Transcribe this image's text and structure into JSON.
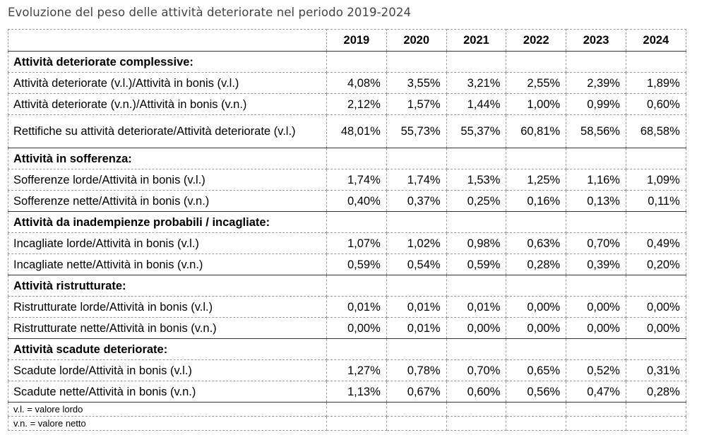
{
  "title": "Evoluzione del peso delle attività deteriorate nel periodo 2019-2024",
  "years": [
    "2019",
    "2020",
    "2021",
    "2022",
    "2023",
    "2024"
  ],
  "sections": [
    {
      "heading": "Attività deteriorate complessive:",
      "rows": [
        {
          "label": "Attività deteriorate (v.l.)/Attività in bonis (v.l.)",
          "values": [
            "4,08%",
            "3,55%",
            "3,21%",
            "2,55%",
            "2,39%",
            "1,89%"
          ]
        },
        {
          "label": "Attività deteriorate (v.n.)/Attività in bonis (v.n.)",
          "values": [
            "2,12%",
            "1,57%",
            "1,44%",
            "1,00%",
            "0,99%",
            "0,60%"
          ]
        },
        {
          "label": "Rettifiche su attività deteriorate/Attività deteriorate (v.l.)",
          "values": [
            "48,01%",
            "55,73%",
            "55,37%",
            "60,81%",
            "58,56%",
            "68,58%"
          ]
        }
      ]
    },
    {
      "heading": "Attività in sofferenza:",
      "rows": [
        {
          "label": "Sofferenze lorde/Attività in bonis (v.l.)",
          "values": [
            "1,74%",
            "1,74%",
            "1,53%",
            "1,25%",
            "1,16%",
            "1,09%"
          ]
        },
        {
          "label": "Sofferenze nette/Attività in bonis (v.n.)",
          "values": [
            "0,40%",
            "0,37%",
            "0,25%",
            "0,16%",
            "0,13%",
            "0,11%"
          ]
        }
      ]
    },
    {
      "heading": "Attività da inadempienze probabili / incagliate:",
      "rows": [
        {
          "label": "Incagliate lorde/Attività in bonis (v.l.)",
          "values": [
            "1,07%",
            "1,02%",
            "0,98%",
            "0,63%",
            "0,70%",
            "0,49%"
          ]
        },
        {
          "label": "Incagliate nette/Attività in bonis (v.n.)",
          "values": [
            "0,59%",
            "0,54%",
            "0,59%",
            "0,28%",
            "0,39%",
            "0,20%"
          ]
        }
      ]
    },
    {
      "heading": "Attività ristrutturate:",
      "rows": [
        {
          "label": "Ristrutturate lorde/Attività in bonis (v.l.)",
          "values": [
            "0,01%",
            "0,01%",
            "0,01%",
            "0,00%",
            "0,00%",
            "0,00%"
          ]
        },
        {
          "label": "Ristrutturate nette/Attività in bonis (v.n.)",
          "values": [
            "0,00%",
            "0,01%",
            "0,00%",
            "0,00%",
            "0,00%",
            "0,00%"
          ]
        }
      ]
    },
    {
      "heading": "Attività scadute deteriorate:",
      "rows": [
        {
          "label": "Scadute lorde/Attività in bonis (v.l.)",
          "values": [
            "1,27%",
            "0,78%",
            "0,70%",
            "0,65%",
            "0,52%",
            "0,31%"
          ]
        },
        {
          "label": "Scadute nette/Attività in bonis (v.n.)",
          "values": [
            "1,13%",
            "0,67%",
            "0,60%",
            "0,56%",
            "0,47%",
            "0,28%"
          ]
        }
      ]
    }
  ],
  "notes": [
    "v.l. = valore lordo",
    "v.n. = valore netto"
  ]
}
